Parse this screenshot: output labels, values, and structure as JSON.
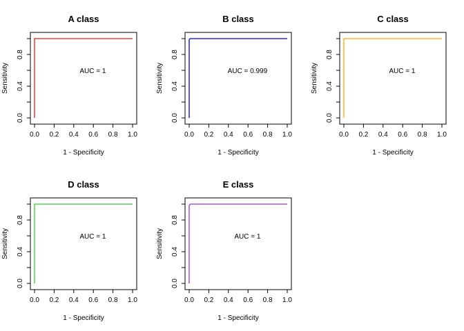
{
  "chart_data": [
    {
      "type": "line",
      "title": "A class",
      "xlabel": "1 - Specificity",
      "ylabel": "Sensitivity",
      "xlim": [
        0,
        1
      ],
      "ylim": [
        0,
        1
      ],
      "x_ticks": [
        "0.0",
        "0.2",
        "0.4",
        "0.6",
        "0.8",
        "1.0"
      ],
      "y_ticks": [
        "0.0",
        "0.4",
        "0.8"
      ],
      "color": "#e41a1c",
      "auc_text": "AUC =  1",
      "points": [
        [
          0,
          0
        ],
        [
          0,
          1
        ],
        [
          1,
          1
        ]
      ]
    },
    {
      "type": "line",
      "title": "B class",
      "xlabel": "1 - Specificity",
      "ylabel": "Sensitivity",
      "xlim": [
        0,
        1
      ],
      "ylim": [
        0,
        1
      ],
      "x_ticks": [
        "0.0",
        "0.2",
        "0.4",
        "0.6",
        "0.8",
        "1.0"
      ],
      "y_ticks": [
        "0.0",
        "0.4",
        "0.8"
      ],
      "color": "#0000cc",
      "auc_text": "AUC =  0.999",
      "points": [
        [
          0,
          0
        ],
        [
          0,
          0.99
        ],
        [
          0.01,
          1
        ],
        [
          1,
          1
        ]
      ]
    },
    {
      "type": "line",
      "title": "C class",
      "xlabel": "1 - Specificity",
      "ylabel": "Sensitivity",
      "xlim": [
        0,
        1
      ],
      "ylim": [
        0,
        1
      ],
      "x_ticks": [
        "0.0",
        "0.2",
        "0.4",
        "0.6",
        "0.8",
        "1.0"
      ],
      "y_ticks": [
        "0.0",
        "0.4",
        "0.8"
      ],
      "color": "#ffa500",
      "auc_text": "AUC =  1",
      "points": [
        [
          0,
          0
        ],
        [
          0,
          1
        ],
        [
          1,
          1
        ]
      ]
    },
    {
      "type": "line",
      "title": "D class",
      "xlabel": "1 - Specificity",
      "ylabel": "Sensitivity",
      "xlim": [
        0,
        1
      ],
      "ylim": [
        0,
        1
      ],
      "x_ticks": [
        "0.0",
        "0.2",
        "0.4",
        "0.6",
        "0.8",
        "1.0"
      ],
      "y_ticks": [
        "0.0",
        "0.4",
        "0.8"
      ],
      "color": "#33cc33",
      "auc_text": "AUC =  1",
      "points": [
        [
          0,
          0
        ],
        [
          0,
          1
        ],
        [
          1,
          1
        ]
      ]
    },
    {
      "type": "line",
      "title": "E class",
      "xlabel": "1 - Specificity",
      "ylabel": "Sensitivity",
      "xlim": [
        0,
        1
      ],
      "ylim": [
        0,
        1
      ],
      "x_ticks": [
        "0.0",
        "0.2",
        "0.4",
        "0.6",
        "0.8",
        "1.0"
      ],
      "y_ticks": [
        "0.0",
        "0.4",
        "0.8"
      ],
      "color": "#9932cc",
      "auc_text": "AUC =  1",
      "points": [
        [
          0,
          0
        ],
        [
          0,
          0.98
        ],
        [
          0.01,
          1
        ],
        [
          1,
          1
        ]
      ]
    }
  ]
}
